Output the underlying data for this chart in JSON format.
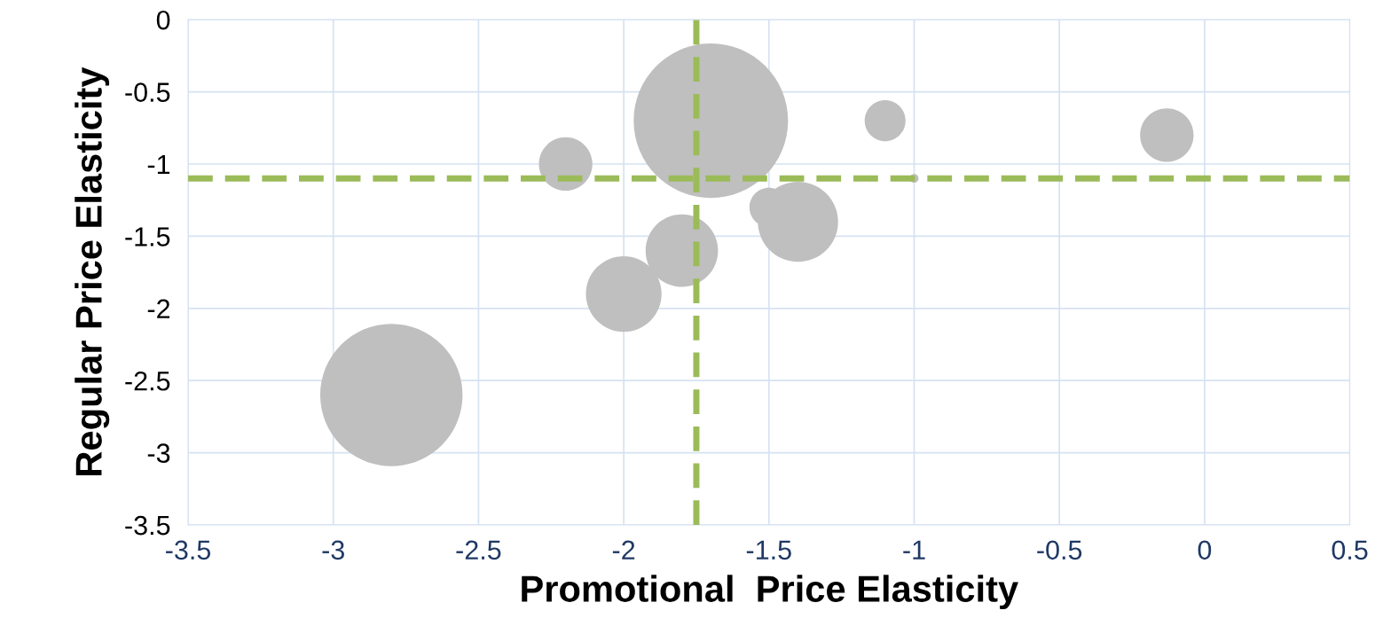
{
  "chart_data": {
    "type": "bubble",
    "xlabel": "Promotional  Price Elasticity",
    "ylabel": "Regular Price Elasticity",
    "x": [
      -2.8,
      -2.2,
      -1.7,
      -2.0,
      -1.8,
      -1.5,
      -1.4,
      -1.1,
      -1.0,
      -0.13
    ],
    "series": [
      {
        "color": "#bfbfbf",
        "values": [
          -2.6,
          -1.0,
          -0.7,
          -1.9,
          -1.6,
          -1.3,
          -1.4,
          -0.7,
          -1.1,
          -0.8
        ],
        "sizes": [
          0.85,
          0.12,
          1,
          0.24,
          0.22,
          0.064,
          0.27,
          0.07,
          0.0033,
          0.12
        ]
      }
    ],
    "xlim": [
      -3.5,
      0.5
    ],
    "xticks": [
      -3.5,
      -3,
      -2.5,
      -2,
      -1.5,
      -1,
      -0.5,
      0,
      0.5
    ],
    "ylim": [
      -3.5,
      0
    ],
    "yticks": [
      -3.5,
      -3,
      -2.5,
      -2,
      -1.5,
      -1,
      -0.5,
      0
    ],
    "grid": true,
    "ref_lines": [
      {
        "axis": "x",
        "value": -1.75,
        "color": "#9bbb59",
        "line_style": "dashed"
      },
      {
        "axis": "y",
        "value": -1.1,
        "color": "#9bbb59",
        "line_style": "dashed"
      }
    ]
  }
}
